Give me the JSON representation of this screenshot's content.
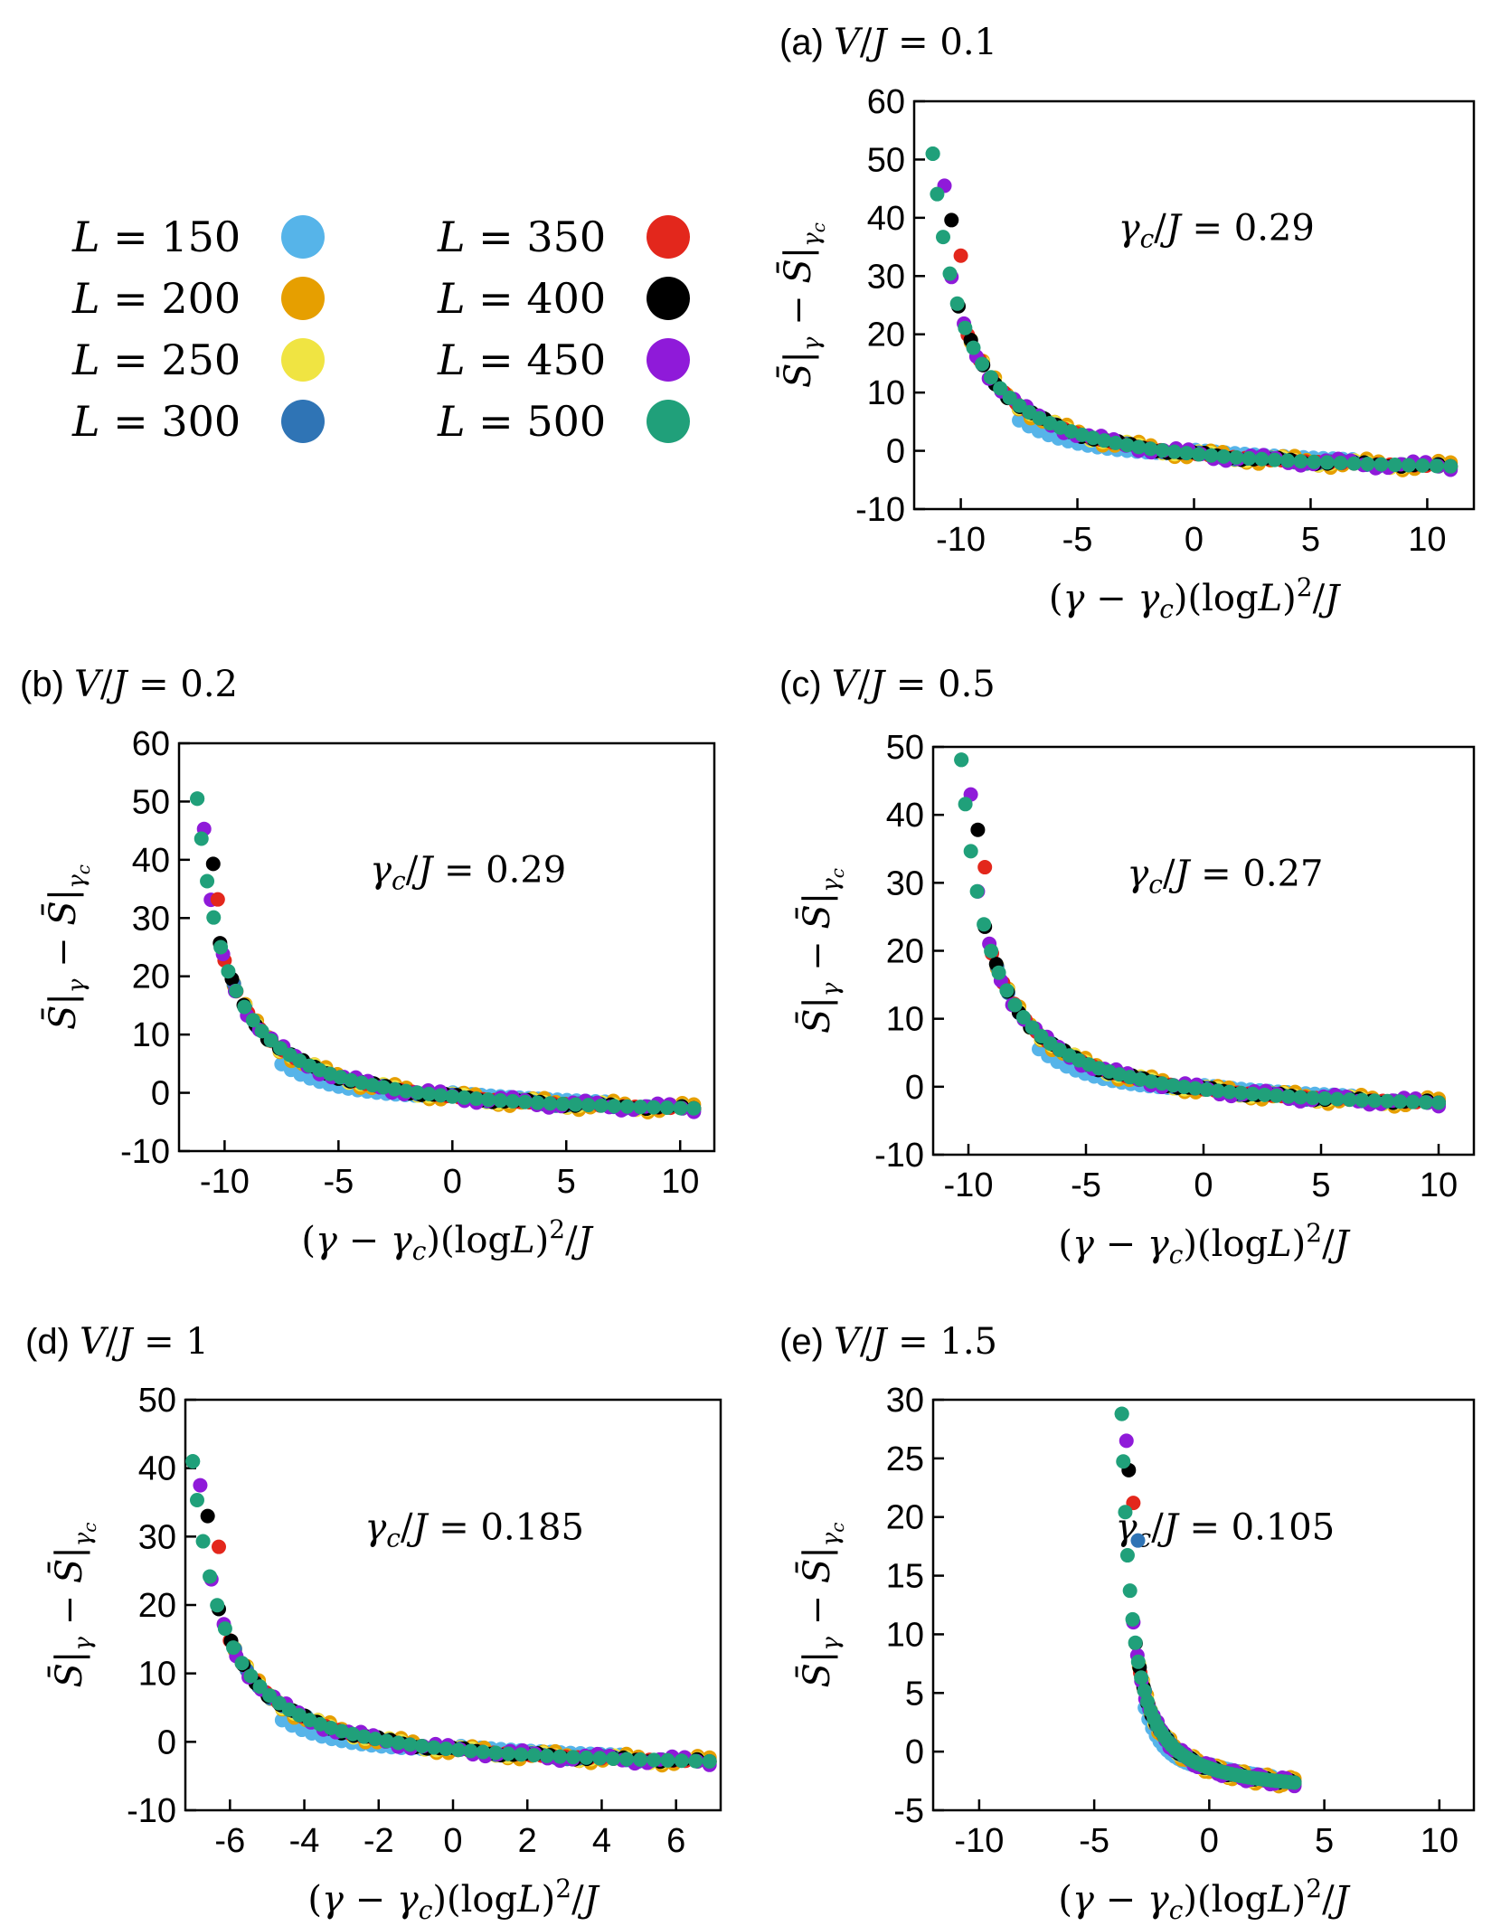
{
  "colors": {
    "L150": "#56b4e9",
    "L200": "#e69f00",
    "L250": "#f0e442",
    "L300": "#2f74b5",
    "L350": "#e3271c",
    "L400": "#000000",
    "L450": "#8f1ad9",
    "L500": "#20a07a"
  },
  "legend": [
    {
      "label": "L = 150",
      "var": "L",
      "value": "150",
      "color_key": "L150"
    },
    {
      "label": "L = 200",
      "var": "L",
      "value": "200",
      "color_key": "L200"
    },
    {
      "label": "L = 250",
      "var": "L",
      "value": "250",
      "color_key": "L250"
    },
    {
      "label": "L = 300",
      "var": "L",
      "value": "300",
      "color_key": "L300"
    },
    {
      "label": "L = 350",
      "var": "L",
      "value": "350",
      "color_key": "L350"
    },
    {
      "label": "L = 400",
      "var": "L",
      "value": "400",
      "color_key": "L400"
    },
    {
      "label": "L = 450",
      "var": "L",
      "value": "450",
      "color_key": "L450"
    },
    {
      "label": "L = 500",
      "var": "L",
      "value": "500",
      "color_key": "L500"
    }
  ],
  "chart_data": [
    {
      "id": "a",
      "type": "scatter",
      "title_prefix": "(a)",
      "title": "V/J = 0.1",
      "annotation": "γc/J = 0.29",
      "xlabel": "(γ − γc)(logL)²/J",
      "ylabel": "S̄|γ − S̄|γc",
      "xlim": [
        -12,
        12
      ],
      "ylim": [
        -10,
        60
      ],
      "xticks": [
        -10,
        -5,
        0,
        5,
        10
      ],
      "yticks": [
        -10,
        0,
        10,
        20,
        30,
        40,
        50,
        60
      ],
      "xmin": -11.2,
      "xmax": 11.0,
      "curve": {
        "a": 9.3,
        "b": 2.5,
        "c": -4.3
      },
      "extremes": {
        "L350": [
          -10.0,
          33.5
        ],
        "L400": [
          -10.4,
          39.6
        ],
        "L450": [
          -10.7,
          45.5
        ],
        "L500": [
          -11.2,
          51.0
        ]
      },
      "L150_range": [
        -7.5,
        6.8
      ]
    },
    {
      "id": "b",
      "type": "scatter",
      "title_prefix": "(b)",
      "title": "V/J = 0.2",
      "annotation": "γc/J = 0.29",
      "xlabel": "(γ − γc)(logL)²/J",
      "ylabel": "S̄|γ − S̄|γc",
      "xlim": [
        -12,
        11.5
      ],
      "ylim": [
        -10,
        60
      ],
      "xticks": [
        -10,
        -5,
        0,
        5,
        10
      ],
      "yticks": [
        -10,
        0,
        10,
        20,
        30,
        40,
        50,
        60
      ],
      "xmin": -11.2,
      "xmax": 10.6,
      "curve": {
        "a": 9.2,
        "b": 2.5,
        "c": -4.3
      },
      "extremes": {
        "L350": [
          -10.3,
          33.2
        ],
        "L400": [
          -10.5,
          39.3
        ],
        "L450": [
          -10.9,
          45.3
        ],
        "L500": [
          -11.2,
          50.5
        ]
      },
      "L150_range": [
        -7.5,
        6.7
      ]
    },
    {
      "id": "c",
      "type": "scatter",
      "title_prefix": "(c)",
      "title": "V/J = 0.5",
      "annotation": "γc/J = 0.27",
      "xlabel": "(γ − γc)(logL)²/J",
      "ylabel": "S̄|γ − S̄|γc",
      "xlim": [
        -11.5,
        11.5
      ],
      "ylim": [
        -10,
        50
      ],
      "xticks": [
        -10,
        -5,
        0,
        5,
        10
      ],
      "yticks": [
        -10,
        0,
        10,
        20,
        30,
        40,
        50
      ],
      "xmin": -10.3,
      "xmax": 10.0,
      "curve": {
        "a": 8.4,
        "b": 2.3,
        "c": -3.9
      },
      "extremes": {
        "L350": [
          -9.3,
          32.3
        ],
        "L400": [
          -9.6,
          37.8
        ],
        "L450": [
          -9.9,
          43.0
        ],
        "L500": [
          -10.3,
          48.1
        ]
      },
      "L150_range": [
        -7.0,
        6.3
      ]
    },
    {
      "id": "d",
      "type": "scatter",
      "title_prefix": "(d)",
      "title": "V/J = 1",
      "annotation": "γc/J = 0.185",
      "xlabel": "(γ − γc)(logL)²/J",
      "ylabel": "S̄|γ − S̄|γc",
      "xlim": [
        -7.2,
        7.2
      ],
      "ylim": [
        -10,
        50
      ],
      "xticks": [
        -6,
        -4,
        -2,
        0,
        2,
        4,
        6
      ],
      "yticks": [
        -10,
        0,
        10,
        20,
        30,
        40,
        50
      ],
      "xmin": -7.0,
      "xmax": 6.9,
      "curve": {
        "a": 5.9,
        "b": 1.45,
        "c": -4.2
      },
      "extremes": {
        "L350": [
          -6.3,
          28.5
        ],
        "L400": [
          -6.6,
          33.0
        ],
        "L450": [
          -6.8,
          37.5
        ],
        "L500": [
          -7.0,
          41.0
        ]
      },
      "L150_range": [
        -4.6,
        4.5
      ]
    },
    {
      "id": "e",
      "type": "scatter",
      "title_prefix": "(e)",
      "title": "V/J = 1.5",
      "annotation": "γc/J = 0.105",
      "xlabel": "(γ − γc)(logL)²/J",
      "ylabel": "S̄|γ − S̄|γc",
      "xlim": [
        -12,
        11.5
      ],
      "ylim": [
        -5,
        30
      ],
      "xticks": [
        -10,
        -5,
        0,
        5,
        10
      ],
      "yticks": [
        -5,
        0,
        5,
        10,
        15,
        20,
        25,
        30
      ],
      "xmin": -3.8,
      "xmax": 3.7,
      "curve": {
        "a": 3.1,
        "b": 0.9,
        "c": -3.6
      },
      "extremes": {
        "L300": [
          -3.1,
          18.0
        ],
        "L350": [
          -3.3,
          21.2
        ],
        "L400": [
          -3.5,
          24.0
        ],
        "L450": [
          -3.6,
          26.5
        ],
        "L500": [
          -3.8,
          28.8
        ]
      },
      "L150_range": [
        -2.8,
        2.7
      ]
    }
  ]
}
